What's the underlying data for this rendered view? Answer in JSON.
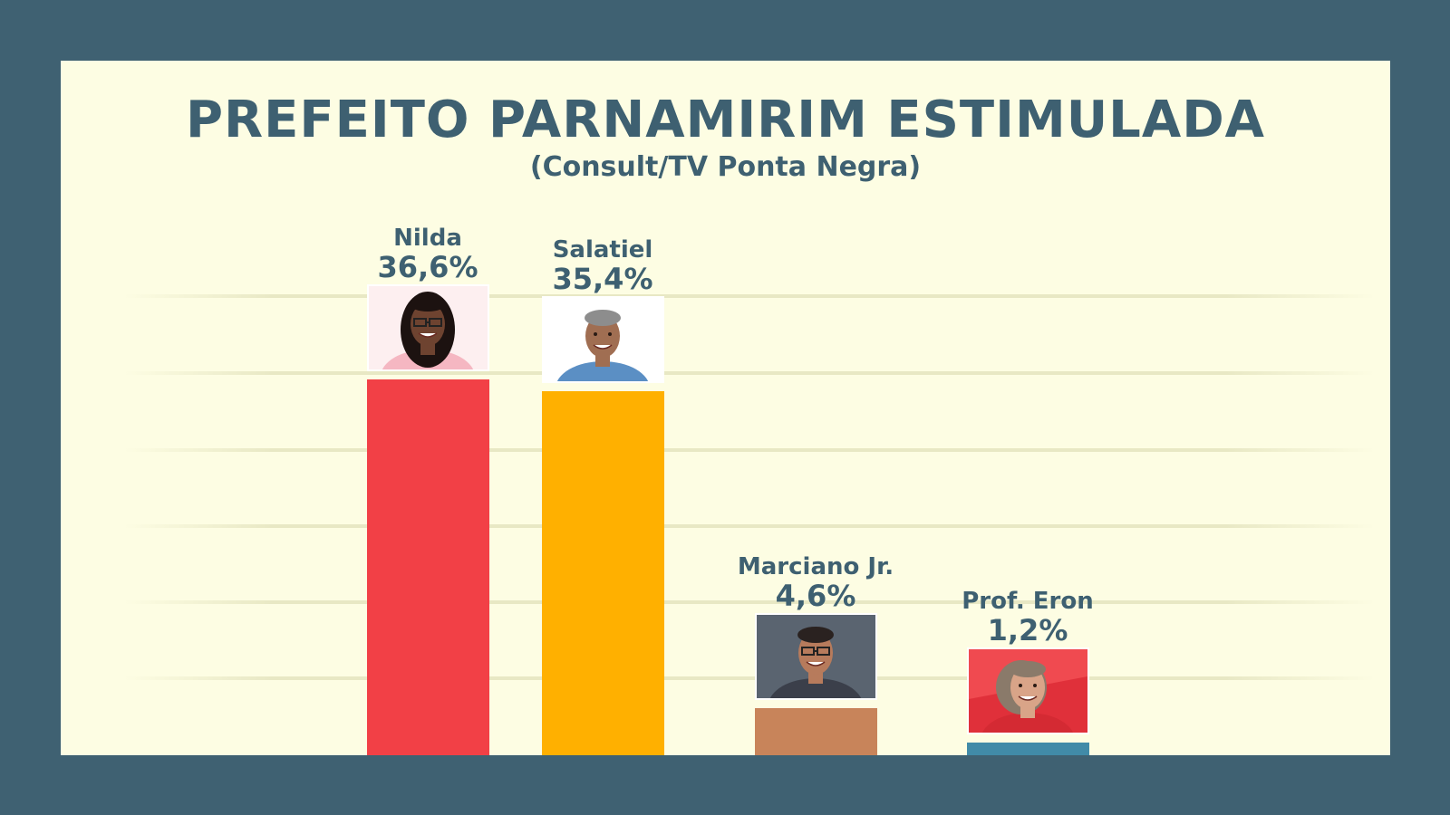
{
  "chart_data": {
    "type": "bar",
    "title": "PREFEITO PARNAMIRIM ESTIMULADA",
    "subtitle": "(Consult/TV Ponta Negra)",
    "categories": [
      "Nilda",
      "Salatiel",
      "Marciano Jr.",
      "Prof. Eron"
    ],
    "values": [
      36.6,
      35.4,
      4.6,
      1.2
    ],
    "value_labels": [
      "36,6%",
      "35,4%",
      "4,6%",
      "1,2%"
    ],
    "colors": [
      "#f24046",
      "#ffb000",
      "#c8845a",
      "#418ba8"
    ],
    "photo_icons": [
      "woman-portrait-icon",
      "man-portrait-icon",
      "man-glasses-portrait-icon",
      "man-long-hair-portrait-icon"
    ],
    "ylim": [
      0,
      38
    ],
    "grid": true,
    "legend": "none"
  },
  "colors": {
    "frame": "#3f6172",
    "panel": "#fdfde3",
    "text": "#3e6071"
  }
}
